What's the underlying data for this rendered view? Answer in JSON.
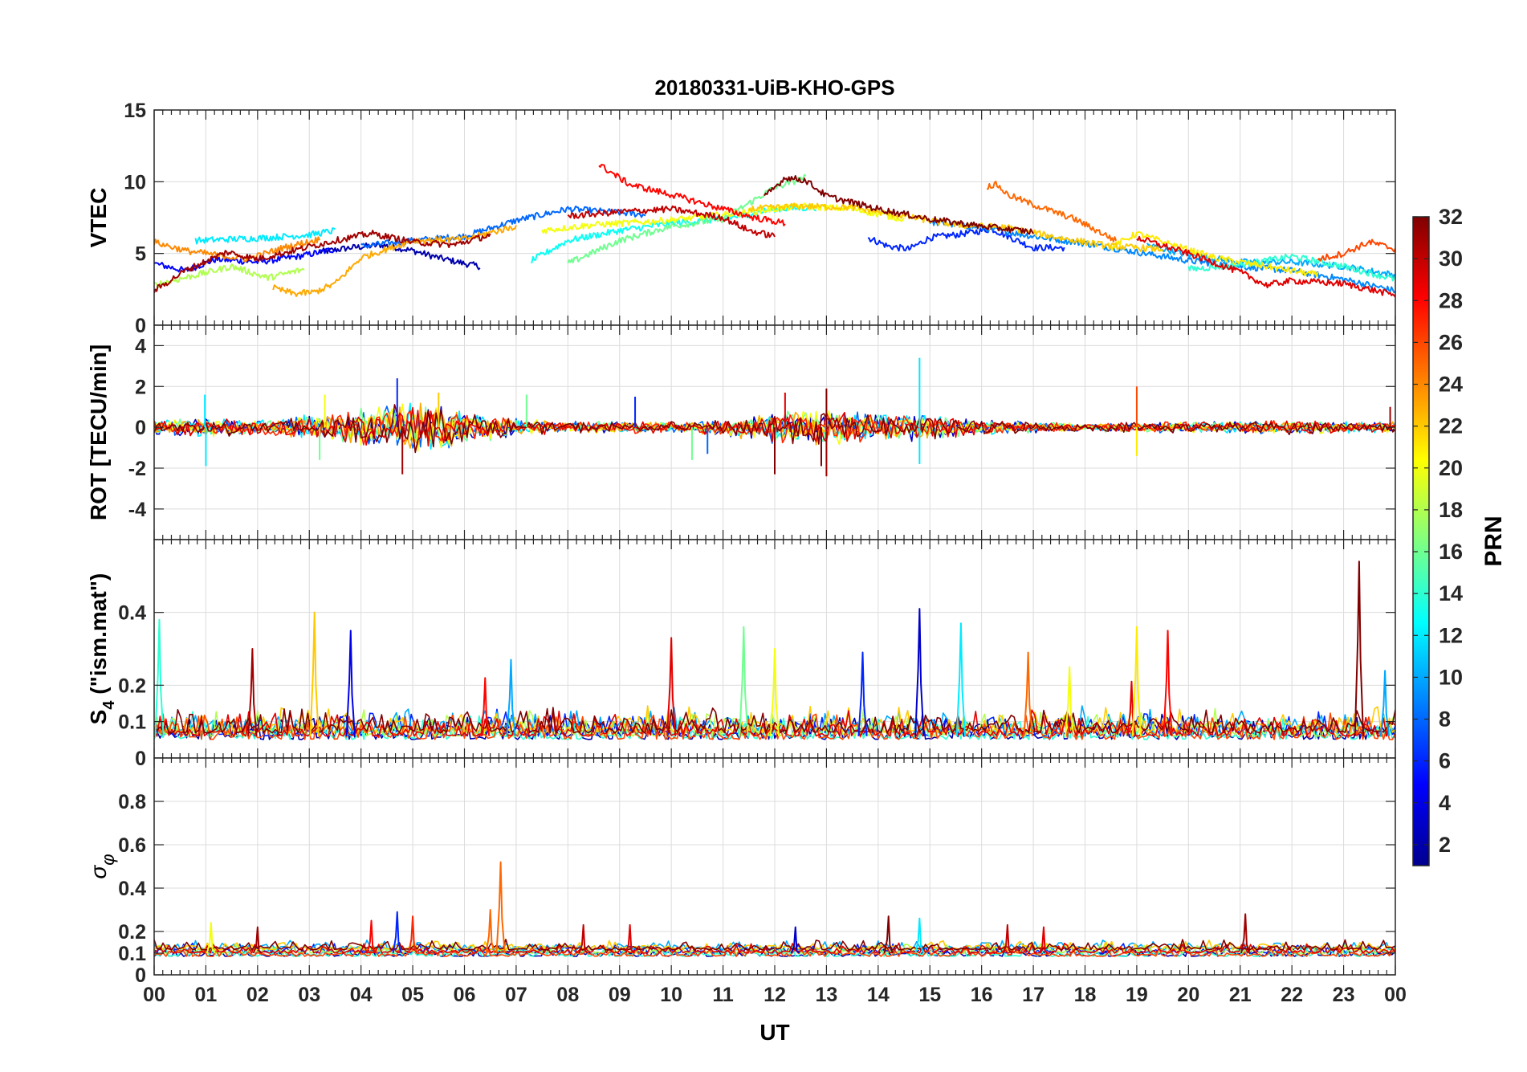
{
  "figure": {
    "title": "20180331-UiB-KHO-GPS",
    "xlabel": "UT",
    "x_tick_labels": [
      "00",
      "01",
      "02",
      "03",
      "04",
      "05",
      "06",
      "07",
      "08",
      "09",
      "10",
      "11",
      "12",
      "13",
      "14",
      "15",
      "16",
      "17",
      "18",
      "19",
      "20",
      "21",
      "22",
      "23",
      "00"
    ]
  },
  "colorbar": {
    "label": "PRN",
    "min": 1,
    "max": 32,
    "ticks": [
      2,
      4,
      6,
      8,
      10,
      12,
      14,
      16,
      18,
      20,
      22,
      24,
      26,
      28,
      30,
      32
    ],
    "colormap": "jet",
    "stops": [
      "#00008f",
      "#0000ff",
      "#0080ff",
      "#00ffff",
      "#80ff80",
      "#ffff00",
      "#ff8000",
      "#ff0000",
      "#800000"
    ]
  },
  "chart_data": [
    {
      "type": "line",
      "panel": "vtec",
      "ylabel": "VTEC",
      "ylim": [
        0,
        15
      ],
      "yticks": [
        0,
        5,
        10,
        15
      ],
      "xlim": [
        0,
        24
      ],
      "grid": true,
      "series": [
        {
          "prn": 2,
          "x": [
            3.2,
            3.8,
            4.4,
            5.0,
            5.5,
            6.0,
            6.3
          ],
          "y": [
            5.1,
            5.4,
            5.6,
            5.2,
            4.7,
            4.3,
            4.1
          ]
        },
        {
          "prn": 5,
          "x": [
            0,
            0.6,
            1.2,
            2.0,
            2.8,
            3.5
          ],
          "y": [
            4.3,
            3.8,
            4.6,
            4.4,
            4.8,
            5.3
          ]
        },
        {
          "prn": 6,
          "x": [
            13.8,
            14.2,
            14.6,
            15.0,
            15.5,
            16.2,
            17.0,
            17.6
          ],
          "y": [
            6.1,
            5.5,
            5.3,
            6.1,
            6.3,
            6.7,
            5.4,
            5.4
          ]
        },
        {
          "prn": 8,
          "x": [
            4.0,
            5.0,
            6.0,
            7.0,
            8.0,
            8.8,
            9.5
          ],
          "y": [
            5.5,
            5.9,
            6.2,
            7.3,
            8.1,
            7.9,
            7.7
          ]
        },
        {
          "prn": 9,
          "x": [
            15.0,
            16.0,
            17.0,
            18.0,
            19.0,
            20.0,
            21.0,
            22.0,
            23.0,
            24.0
          ],
          "y": [
            7.2,
            6.8,
            6.2,
            5.7,
            5.1,
            4.5,
            4.1,
            3.8,
            3.2,
            2.4
          ]
        },
        {
          "prn": 10,
          "x": [
            19.2,
            20.0,
            21.0,
            22.0,
            23.0,
            24.0
          ],
          "y": [
            5.6,
            4.9,
            4.4,
            4.4,
            4.1,
            3.5
          ]
        },
        {
          "prn": 12,
          "x": [
            0.8,
            1.5,
            2.2,
            3.0,
            3.5
          ],
          "y": [
            5.9,
            6.0,
            6.1,
            6.3,
            6.6
          ]
        },
        {
          "prn": 13,
          "x": [
            7.3,
            8.0,
            9.0,
            10.0,
            11.0,
            12.0,
            12.8
          ],
          "y": [
            4.5,
            5.9,
            6.6,
            7.1,
            7.4,
            8.1,
            8.2
          ]
        },
        {
          "prn": 14,
          "x": [
            20.0,
            21.0,
            22.0,
            23.0,
            24.0
          ],
          "y": [
            3.9,
            4.2,
            4.8,
            4.1,
            3.2
          ]
        },
        {
          "prn": 16,
          "x": [
            8.0,
            9.0,
            10.0,
            11.0,
            12.0,
            12.6
          ],
          "y": [
            4.3,
            5.9,
            6.9,
            7.4,
            9.6,
            10.3
          ]
        },
        {
          "prn": 18,
          "x": [
            0,
            0.7,
            1.5,
            2.2,
            2.9
          ],
          "y": [
            2.8,
            3.4,
            4.1,
            3.3,
            3.9
          ]
        },
        {
          "prn": 20,
          "x": [
            7.5,
            8.5,
            9.5,
            10.5,
            11.5,
            12.5,
            13.5,
            14.5
          ],
          "y": [
            6.6,
            7.0,
            7.2,
            7.5,
            7.9,
            8.3,
            8.1,
            7.4
          ]
        },
        {
          "prn": 21,
          "x": [
            18.5,
            19.0,
            19.6,
            20.5,
            21.5,
            22.5
          ],
          "y": [
            5.4,
            6.4,
            5.7,
            4.7,
            4.1,
            3.5
          ]
        },
        {
          "prn": 22,
          "x": [
            11.5,
            12.5,
            13.5,
            14.5,
            15.5,
            16.5,
            17.5,
            18.5,
            19.5
          ],
          "y": [
            8.1,
            8.3,
            8.2,
            7.6,
            7.0,
            6.8,
            6.1,
            5.5,
            5.3
          ]
        },
        {
          "prn": 23,
          "x": [
            2.3,
            2.7,
            3.1,
            3.5,
            4.0,
            5.0,
            6.0,
            7.0
          ],
          "y": [
            2.6,
            2.2,
            2.3,
            2.9,
            4.7,
            5.9,
            6.0,
            6.9
          ]
        },
        {
          "prn": 24,
          "x": [
            0,
            0.6,
            1.2,
            1.8,
            2.5,
            3.2
          ],
          "y": [
            5.8,
            5.2,
            4.9,
            4.6,
            5.4,
            6.0
          ]
        },
        {
          "prn": 25,
          "x": [
            16.1,
            16.3,
            16.5,
            17.0,
            17.8,
            18.6
          ],
          "y": [
            9.7,
            9.8,
            9.1,
            8.4,
            7.4,
            5.9
          ]
        },
        {
          "prn": 26,
          "x": [
            22.5,
            23.0,
            23.5,
            24.0
          ],
          "y": [
            4.6,
            5.0,
            5.8,
            5.3
          ]
        },
        {
          "prn": 28,
          "x": [
            8.6,
            9.2,
            10.0,
            10.8,
            11.6,
            12.2
          ],
          "y": [
            11.2,
            9.8,
            9.1,
            8.3,
            7.5,
            7.1
          ]
        },
        {
          "prn": 29,
          "x": [
            19.0,
            20.0,
            21.0,
            21.5,
            22.0,
            23.0,
            24.0
          ],
          "y": [
            6.1,
            5.0,
            3.7,
            2.8,
            3.1,
            2.9,
            2.1
          ]
        },
        {
          "prn": 30,
          "x": [
            8.0,
            9.0,
            10.0,
            11.0,
            11.5,
            12.0
          ],
          "y": [
            7.6,
            7.9,
            8.1,
            7.5,
            6.6,
            6.2
          ]
        },
        {
          "prn": 31,
          "x": [
            0,
            0.6,
            1.4,
            2.0,
            2.8,
            3.5,
            4.2,
            5.0,
            5.8,
            6.5
          ],
          "y": [
            2.4,
            3.8,
            5.1,
            4.6,
            5.3,
            5.9,
            6.4,
            5.8,
            5.6,
            6.3
          ]
        },
        {
          "prn": 32,
          "x": [
            11.8,
            12.2,
            12.6,
            13.0,
            14.0,
            15.0,
            16.0,
            17.0
          ],
          "y": [
            8.9,
            10.3,
            10.1,
            9.0,
            8.1,
            7.4,
            6.9,
            6.5
          ]
        }
      ]
    },
    {
      "type": "line",
      "panel": "rot",
      "ylabel": "ROT [TECU/min]",
      "ylim": [
        -5.5,
        5
      ],
      "yticks": [
        -4,
        -2,
        0,
        2,
        4
      ],
      "xlim": [
        0,
        24
      ],
      "grid": true,
      "noise_envelope": {
        "x": [
          0,
          1,
          2,
          3,
          4,
          5,
          6,
          7,
          8,
          9,
          10,
          11,
          12,
          13,
          14,
          15,
          16,
          17,
          18,
          19,
          20,
          21,
          22,
          23,
          24
        ],
        "amplitude": [
          0.4,
          0.5,
          0.4,
          0.7,
          1.0,
          1.4,
          0.9,
          0.5,
          0.3,
          0.3,
          0.3,
          0.4,
          0.9,
          1.0,
          0.7,
          0.7,
          0.4,
          0.3,
          0.2,
          0.3,
          0.3,
          0.3,
          0.4,
          0.3,
          0.3
        ]
      },
      "spikes": [
        {
          "x": 0.98,
          "y": 1.6,
          "prn": 12
        },
        {
          "x": 1.0,
          "y": -1.9,
          "prn": 12
        },
        {
          "x": 3.2,
          "y": -1.6,
          "prn": 16
        },
        {
          "x": 3.3,
          "y": 1.6,
          "prn": 20
        },
        {
          "x": 4.7,
          "y": 2.4,
          "prn": 6
        },
        {
          "x": 4.8,
          "y": -2.3,
          "prn": 31
        },
        {
          "x": 5.5,
          "y": 1.7,
          "prn": 22
        },
        {
          "x": 7.2,
          "y": 1.6,
          "prn": 16
        },
        {
          "x": 9.3,
          "y": 1.5,
          "prn": 6
        },
        {
          "x": 10.4,
          "y": -1.6,
          "prn": 16
        },
        {
          "x": 10.7,
          "y": -1.3,
          "prn": 8
        },
        {
          "x": 12.0,
          "y": -2.3,
          "prn": 32
        },
        {
          "x": 12.2,
          "y": 1.7,
          "prn": 29
        },
        {
          "x": 12.9,
          "y": -1.9,
          "prn": 32
        },
        {
          "x": 13.0,
          "y": -2.4,
          "prn": 31
        },
        {
          "x": 13.0,
          "y": 1.9,
          "prn": 32
        },
        {
          "x": 14.8,
          "y": 3.4,
          "prn": 12
        },
        {
          "x": 14.8,
          "y": -1.8,
          "prn": 12
        },
        {
          "x": 19.0,
          "y": 2.0,
          "prn": 26
        },
        {
          "x": 19.0,
          "y": -1.4,
          "prn": 21
        },
        {
          "x": 23.9,
          "y": 1.0,
          "prn": 31
        }
      ]
    },
    {
      "type": "line",
      "panel": "s4",
      "ylabel": "S4 (\"ism.mat\")",
      "ylim": [
        0,
        0.6
      ],
      "yticks": [
        0,
        0.1,
        0.2,
        0.4
      ],
      "xlim": [
        0,
        24
      ],
      "grid": true,
      "baseline": 0.06,
      "spikes": [
        {
          "x": 0.1,
          "y": 0.38,
          "prn": 14
        },
        {
          "x": 1.9,
          "y": 0.3,
          "prn": 31
        },
        {
          "x": 3.1,
          "y": 0.4,
          "prn": 22
        },
        {
          "x": 3.8,
          "y": 0.35,
          "prn": 4
        },
        {
          "x": 6.4,
          "y": 0.22,
          "prn": 28
        },
        {
          "x": 6.9,
          "y": 0.27,
          "prn": 10
        },
        {
          "x": 10.0,
          "y": 0.33,
          "prn": 29
        },
        {
          "x": 11.4,
          "y": 0.36,
          "prn": 16
        },
        {
          "x": 12.0,
          "y": 0.3,
          "prn": 20
        },
        {
          "x": 13.7,
          "y": 0.29,
          "prn": 6
        },
        {
          "x": 14.8,
          "y": 0.41,
          "prn": 3
        },
        {
          "x": 15.6,
          "y": 0.37,
          "prn": 12
        },
        {
          "x": 16.9,
          "y": 0.29,
          "prn": 25
        },
        {
          "x": 17.7,
          "y": 0.25,
          "prn": 20
        },
        {
          "x": 18.9,
          "y": 0.21,
          "prn": 29
        },
        {
          "x": 19.0,
          "y": 0.36,
          "prn": 21
        },
        {
          "x": 19.6,
          "y": 0.35,
          "prn": 28
        },
        {
          "x": 23.3,
          "y": 0.54,
          "prn": 32
        },
        {
          "x": 23.8,
          "y": 0.24,
          "prn": 10
        }
      ]
    },
    {
      "type": "line",
      "panel": "sigma_phi",
      "ylabel": "σφ",
      "ylim": [
        0,
        1
      ],
      "yticks": [
        0,
        0.1,
        0.2,
        0.4,
        0.6,
        0.8
      ],
      "xlim": [
        0,
        24
      ],
      "grid": true,
      "baseline": 0.1,
      "spikes": [
        {
          "x": 1.1,
          "y": 0.24,
          "prn": 20
        },
        {
          "x": 2.0,
          "y": 0.22,
          "prn": 31
        },
        {
          "x": 4.2,
          "y": 0.25,
          "prn": 28
        },
        {
          "x": 4.7,
          "y": 0.29,
          "prn": 6
        },
        {
          "x": 5.0,
          "y": 0.27,
          "prn": 27
        },
        {
          "x": 6.5,
          "y": 0.3,
          "prn": 25
        },
        {
          "x": 6.7,
          "y": 0.52,
          "prn": 25
        },
        {
          "x": 8.3,
          "y": 0.23,
          "prn": 30
        },
        {
          "x": 9.2,
          "y": 0.23,
          "prn": 29
        },
        {
          "x": 12.4,
          "y": 0.22,
          "prn": 3
        },
        {
          "x": 14.2,
          "y": 0.27,
          "prn": 32
        },
        {
          "x": 14.8,
          "y": 0.26,
          "prn": 12
        },
        {
          "x": 16.5,
          "y": 0.23,
          "prn": 30
        },
        {
          "x": 17.2,
          "y": 0.22,
          "prn": 29
        },
        {
          "x": 21.1,
          "y": 0.28,
          "prn": 31
        }
      ]
    }
  ]
}
